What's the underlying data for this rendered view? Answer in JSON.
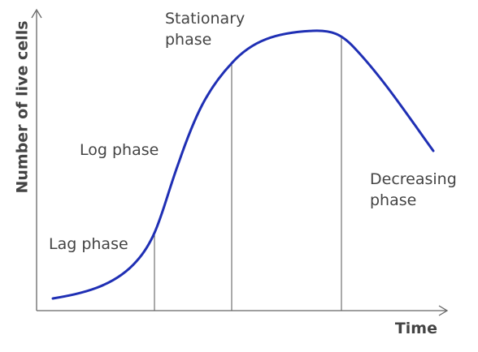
{
  "axes": {
    "y_label": "Number of live cells",
    "x_label": "Time"
  },
  "phases": [
    {
      "lines": [
        "Lag phase"
      ]
    },
    {
      "lines": [
        "Log phase"
      ]
    },
    {
      "lines": [
        "Stationary",
        "phase"
      ]
    },
    {
      "lines": [
        "Decreasing",
        "phase"
      ]
    }
  ]
}
